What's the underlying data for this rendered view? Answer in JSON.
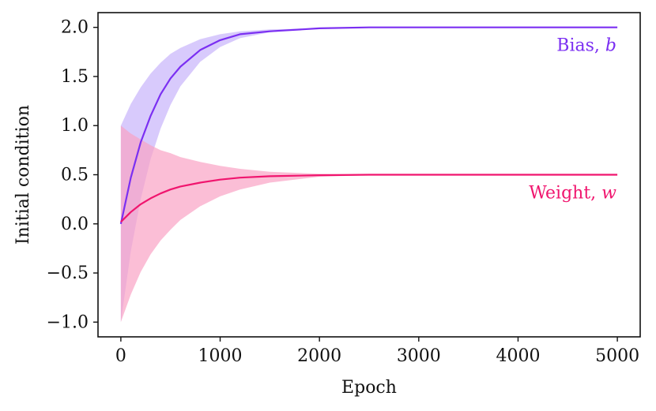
{
  "chart_data": {
    "type": "line",
    "title": "",
    "xlabel": "Epoch",
    "ylabel": "Initial condition",
    "xlim": [
      -230,
      5230
    ],
    "ylim": [
      -1.15,
      2.15
    ],
    "x_ticks": [
      0,
      1000,
      2000,
      3000,
      4000,
      5000
    ],
    "x_tick_labels": [
      "0",
      "1000",
      "2000",
      "3000",
      "4000",
      "5000"
    ],
    "y_ticks": [
      -1.0,
      -0.5,
      0.0,
      0.5,
      1.0,
      1.5,
      2.0
    ],
    "y_tick_labels": [
      "−1.0",
      "−0.5",
      "0.0",
      "0.5",
      "1.0",
      "1.5",
      "2.0"
    ],
    "grid": false,
    "legend": "none",
    "series": [
      {
        "name": "Bias",
        "variable": "b",
        "label_prefix": "Bias, ",
        "color": "#7b2ff2",
        "band_color": "#c8b4fb",
        "x": [
          0,
          100,
          200,
          300,
          400,
          500,
          600,
          800,
          1000,
          1200,
          1500,
          2000,
          2500,
          3000,
          4000,
          5000
        ],
        "mean": [
          0.0,
          0.47,
          0.83,
          1.1,
          1.32,
          1.48,
          1.6,
          1.77,
          1.87,
          1.93,
          1.96,
          1.99,
          2.0,
          2.0,
          2.0,
          2.0
        ],
        "upper": [
          1.0,
          1.22,
          1.39,
          1.53,
          1.64,
          1.73,
          1.79,
          1.88,
          1.93,
          1.96,
          1.98,
          1.99,
          2.0,
          2.0,
          2.0,
          2.0
        ],
        "lower": [
          -1.0,
          -0.28,
          0.25,
          0.66,
          0.97,
          1.21,
          1.4,
          1.65,
          1.8,
          1.89,
          1.95,
          1.99,
          2.0,
          2.0,
          2.0,
          2.0
        ]
      },
      {
        "name": "Weight",
        "variable": "w",
        "label_prefix": "Weight, ",
        "color": "#f0156e",
        "band_color": "#f9a3c5",
        "x": [
          0,
          100,
          200,
          300,
          400,
          500,
          600,
          800,
          1000,
          1200,
          1500,
          2000,
          2500,
          3000,
          4000,
          5000
        ],
        "mean": [
          0.02,
          0.12,
          0.2,
          0.26,
          0.31,
          0.35,
          0.38,
          0.42,
          0.45,
          0.47,
          0.485,
          0.495,
          0.5,
          0.5,
          0.5,
          0.5
        ],
        "upper": [
          1.0,
          0.92,
          0.86,
          0.8,
          0.75,
          0.72,
          0.68,
          0.63,
          0.59,
          0.56,
          0.53,
          0.51,
          0.5,
          0.5,
          0.5,
          0.5
        ],
        "lower": [
          -1.0,
          -0.72,
          -0.49,
          -0.31,
          -0.17,
          -0.06,
          0.04,
          0.18,
          0.28,
          0.35,
          0.42,
          0.48,
          0.495,
          0.5,
          0.5,
          0.5
        ]
      }
    ]
  }
}
